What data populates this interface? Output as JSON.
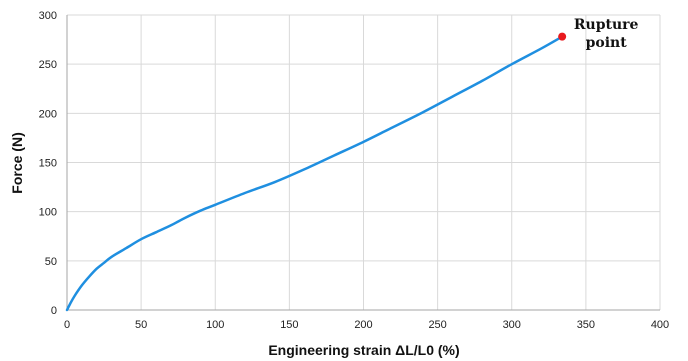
{
  "chart_data": {
    "type": "line",
    "xlabel": "Engineering strain ΔL/L0 (%)",
    "ylabel": "Force (N)",
    "xlim": [
      0,
      400
    ],
    "ylim": [
      0,
      300
    ],
    "xticks": [
      0,
      50,
      100,
      150,
      200,
      250,
      300,
      350,
      400
    ],
    "yticks": [
      0,
      50,
      100,
      150,
      200,
      250,
      300
    ],
    "grid": true,
    "series": [
      {
        "color": "#1f8fe0",
        "x": [
          0,
          2,
          5,
          10,
          15,
          20,
          25,
          30,
          40,
          50,
          60,
          70,
          75,
          80,
          90,
          100,
          120,
          140,
          160,
          180,
          200,
          220,
          240,
          260,
          280,
          300,
          320,
          334
        ],
        "y": [
          0,
          6,
          14,
          25,
          34,
          42,
          48,
          54,
          63,
          72,
          79,
          86,
          90,
          94,
          101,
          107,
          119,
          130,
          143,
          157,
          171,
          186,
          201,
          217,
          233,
          250,
          266,
          278
        ]
      }
    ],
    "annotations": [
      {
        "lines": [
          "Rupture",
          "point"
        ],
        "x": 334,
        "y": 278,
        "marker_color": "#e8191e"
      }
    ]
  }
}
